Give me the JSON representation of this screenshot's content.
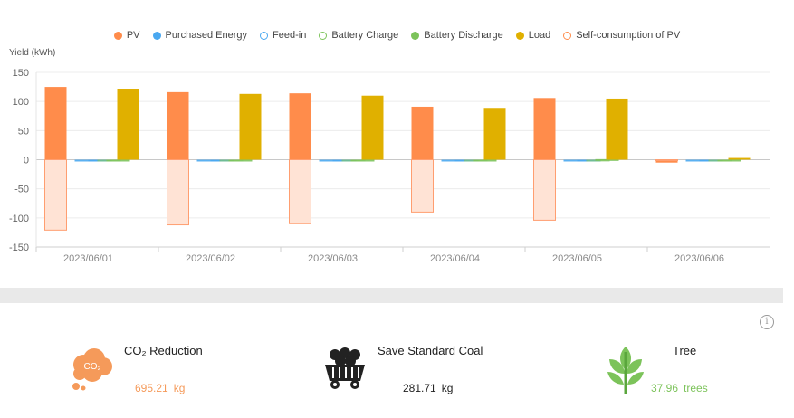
{
  "legend": [
    {
      "label": "PV",
      "color": "#ff8c4b",
      "style": "filled"
    },
    {
      "label": "Purchased Energy",
      "color": "#4aa8f0",
      "style": "filled"
    },
    {
      "label": "Feed-in",
      "color": "#4aa8f0",
      "style": "outline"
    },
    {
      "label": "Battery Charge",
      "color": "#7cc35a",
      "style": "outline"
    },
    {
      "label": "Battery Discharge",
      "color": "#7cc35a",
      "style": "filled"
    },
    {
      "label": "Load",
      "color": "#e0b000",
      "style": "filled"
    },
    {
      "label": "Self-consumption of PV",
      "color": "#ff8c4b",
      "style": "outline"
    }
  ],
  "chart_data": {
    "type": "bar",
    "ylabel": "Yield (kWh)",
    "ylim": [
      -150,
      150
    ],
    "yticks": [
      150,
      100,
      50,
      0,
      -50,
      -100,
      -150
    ],
    "categories": [
      "2023/06/01",
      "2023/06/02",
      "2023/06/03",
      "2023/06/04",
      "2023/06/05",
      "2023/06/06"
    ],
    "series": [
      {
        "name": "PV",
        "color": "#ff8c4b",
        "values": [
          125,
          116,
          114,
          91,
          106,
          -5
        ]
      },
      {
        "name": "Purchased Energy",
        "color": "#4aa8f0",
        "values": [
          -2,
          -2,
          -2,
          -2,
          -2,
          -1
        ]
      },
      {
        "name": "Feed-in",
        "color": "#4aa8f0",
        "values": [
          0,
          0,
          0,
          0,
          0,
          0
        ]
      },
      {
        "name": "Battery Charge",
        "color": "#7cc35a",
        "values": [
          -1,
          -1,
          -1,
          -1,
          -1,
          -1
        ]
      },
      {
        "name": "Battery Discharge",
        "color": "#7cc35a",
        "values": [
          0,
          0,
          0,
          0,
          1,
          0
        ]
      },
      {
        "name": "Load",
        "color": "#e0b000",
        "values": [
          122,
          113,
          110,
          89,
          105,
          3
        ]
      },
      {
        "name": "Self-consumption of PV",
        "color": "#ff8c4b",
        "values": [
          -121,
          -112,
          -110,
          -90,
          -104,
          0
        ]
      }
    ],
    "grid": true
  },
  "stats": {
    "co2": {
      "title": "CO₂ Reduction",
      "value": "695.21",
      "unit": "kg",
      "icon_text": "CO₂",
      "color": "#f59a5a"
    },
    "coal": {
      "title": "Save Standard Coal",
      "value": "281.71",
      "unit": "kg",
      "color": "#222222"
    },
    "tree": {
      "title": "Tree",
      "value": "37.96",
      "unit": "trees",
      "color": "#7cc35a"
    }
  }
}
